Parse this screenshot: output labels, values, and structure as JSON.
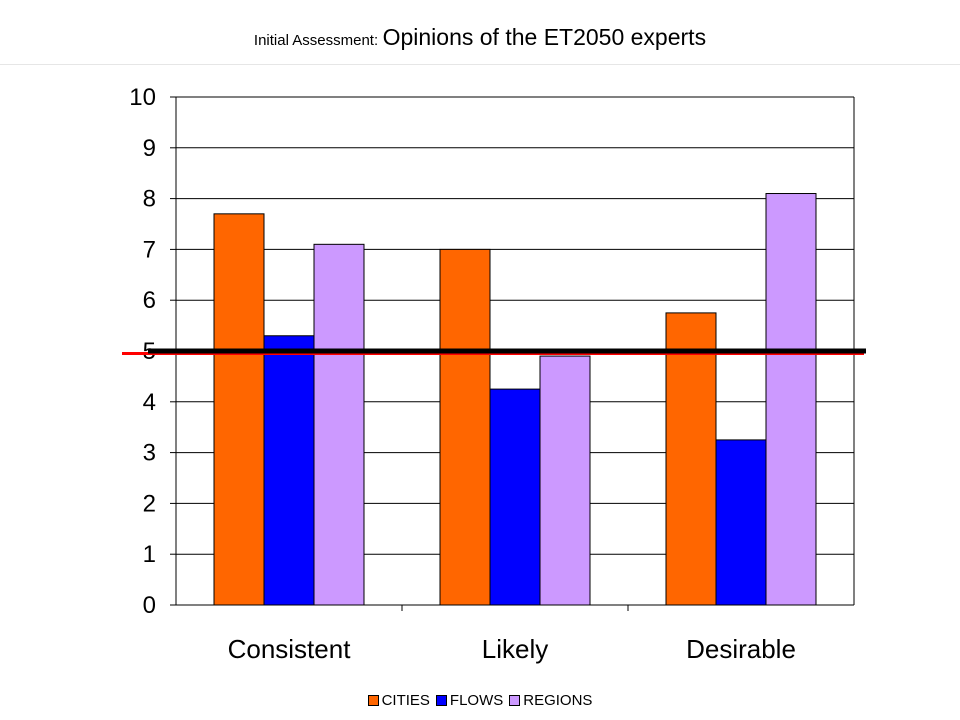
{
  "title": {
    "prefix": "Initial Assessment:",
    "main": "Opinions of the ET2050 experts"
  },
  "chart_data": {
    "type": "bar",
    "categories": [
      "Consistent",
      "Likely",
      "Desirable"
    ],
    "series": [
      {
        "name": "CITIES",
        "values": [
          7.7,
          7.0,
          5.75
        ],
        "color": "#ff6600"
      },
      {
        "name": "FLOWS",
        "values": [
          5.3,
          4.25,
          3.25
        ],
        "color": "#0000ff"
      },
      {
        "name": "REGIONS",
        "values": [
          7.1,
          4.9,
          8.1
        ],
        "color": "#cc99ff"
      }
    ],
    "ylim": [
      0,
      10
    ],
    "yticks": [
      "0",
      "1",
      "2",
      "3",
      "4",
      "5",
      "6",
      "7",
      "8",
      "9",
      "10"
    ],
    "grid": true,
    "legend_position": "bottom",
    "reference_lines": [
      {
        "value": 5.0,
        "color": "#000000"
      },
      {
        "value": 4.95,
        "color": "#ff0000"
      }
    ]
  }
}
